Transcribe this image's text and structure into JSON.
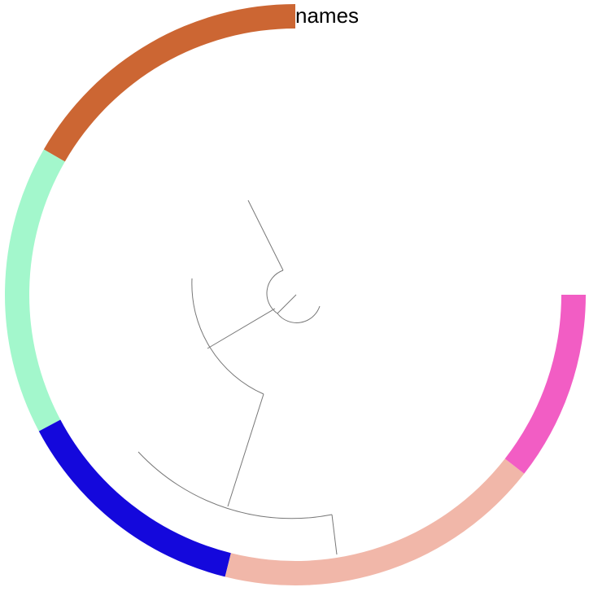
{
  "title": "names",
  "ring": {
    "segments": [
      {
        "color": "#CC6633",
        "start_deg": 0,
        "end_deg": 60
      },
      {
        "color": "#A3F7CC",
        "start_deg": 60,
        "end_deg": 118
      },
      {
        "color": "#1408DC",
        "start_deg": 118,
        "end_deg": 166
      },
      {
        "color": "#F1B7A9",
        "start_deg": 166,
        "end_deg": 232
      },
      {
        "color": "#F25DC4",
        "start_deg": 232,
        "end_deg": 270
      }
    ]
  },
  "tree_color": "#777777"
}
